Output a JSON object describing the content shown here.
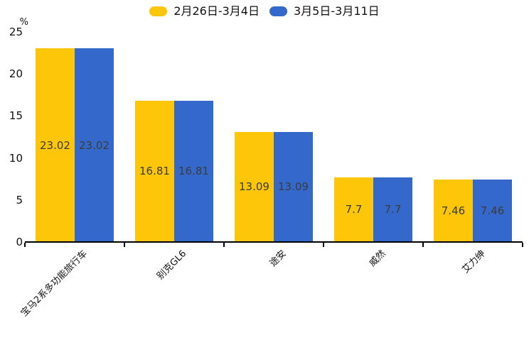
{
  "unit_label": "%",
  "legend": {
    "items": [
      {
        "label": "2月26日-3月4日",
        "color": "#FDC609"
      },
      {
        "label": "3月5日-3月11日",
        "color": "#3469CB"
      }
    ]
  },
  "chart_data": {
    "type": "bar",
    "categories": [
      "宝马2系多功能旅行车",
      "别克GL6",
      "途安",
      "威然",
      "艾力绅"
    ],
    "series": [
      {
        "name": "2月26日-3月4日",
        "color": "#FDC609",
        "values": [
          23.02,
          16.81,
          13.09,
          7.7,
          7.46
        ]
      },
      {
        "name": "3月5日-3月11日",
        "color": "#3469CB",
        "values": [
          23.02,
          16.81,
          13.09,
          7.7,
          7.46
        ]
      }
    ],
    "title": "",
    "xlabel": "",
    "ylabel": "%",
    "ylim": [
      0,
      25
    ],
    "yticks": [
      0,
      5,
      10,
      15,
      20,
      25
    ],
    "grid": false,
    "legend_position": "top-center",
    "value_labels": "centered-in-bar",
    "bar_value_text": [
      [
        "23.02",
        "16.81",
        "13.09",
        "7.7",
        "7.46"
      ],
      [
        "23.02",
        "16.81",
        "13.09",
        "7.7",
        "7.46"
      ]
    ],
    "category_label_rotation_deg": 45,
    "axis_color": "#000000",
    "value_label_color": "#3b3b3b"
  }
}
